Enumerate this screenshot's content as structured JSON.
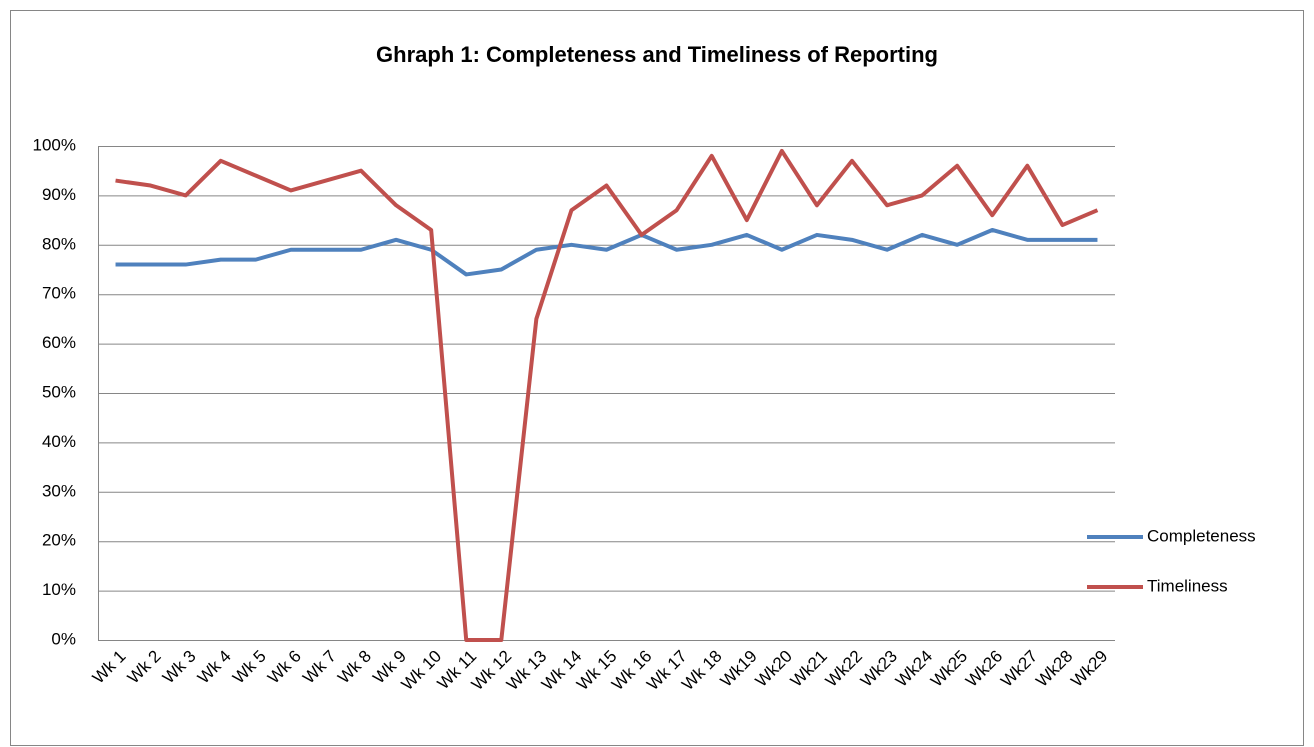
{
  "chart_data": {
    "type": "line",
    "title": "Ghraph 1: Completeness and Timeliness of Reporting",
    "categories": [
      "Wk 1",
      "Wk 2",
      "Wk 3",
      "Wk 4",
      "Wk 5",
      "Wk 6",
      "Wk 7",
      "Wk 8",
      "Wk 9",
      "Wk 10",
      "Wk 11",
      "Wk 12",
      "Wk 13",
      "Wk 14",
      "Wk 15",
      "Wk 16",
      "Wk 17",
      "Wk 18",
      "Wk19",
      "Wk20",
      "Wk21",
      "Wk22",
      "Wk23",
      "Wk24",
      "Wk25",
      "Wk26",
      "Wk27",
      "Wk28",
      "Wk29"
    ],
    "series": [
      {
        "name": "Completeness",
        "color": "#4f81bd",
        "values": [
          76,
          76,
          76,
          77,
          77,
          79,
          79,
          79,
          81,
          79,
          74,
          75,
          79,
          80,
          79,
          82,
          79,
          80,
          82,
          79,
          82,
          81,
          79,
          82,
          80,
          83,
          81,
          81,
          81
        ]
      },
      {
        "name": "Timeliness",
        "color": "#c0504d",
        "values": [
          93,
          92,
          90,
          97,
          94,
          91,
          93,
          95,
          88,
          83,
          0,
          0,
          65,
          87,
          92,
          82,
          87,
          98,
          85,
          99,
          88,
          97,
          88,
          90,
          96,
          86,
          96,
          84,
          87
        ]
      }
    ],
    "ylim": [
      0,
      100
    ],
    "yticks": [
      {
        "value": 0,
        "label": "0%"
      },
      {
        "value": 10,
        "label": "10%"
      },
      {
        "value": 20,
        "label": "20%"
      },
      {
        "value": 30,
        "label": "30%"
      },
      {
        "value": 40,
        "label": "40%"
      },
      {
        "value": 50,
        "label": "50%"
      },
      {
        "value": 60,
        "label": "60%"
      },
      {
        "value": 70,
        "label": "70%"
      },
      {
        "value": 80,
        "label": "80%"
      },
      {
        "value": 90,
        "label": "90%"
      },
      {
        "value": 100,
        "label": "100%"
      }
    ],
    "grid": true,
    "legend": "right"
  }
}
